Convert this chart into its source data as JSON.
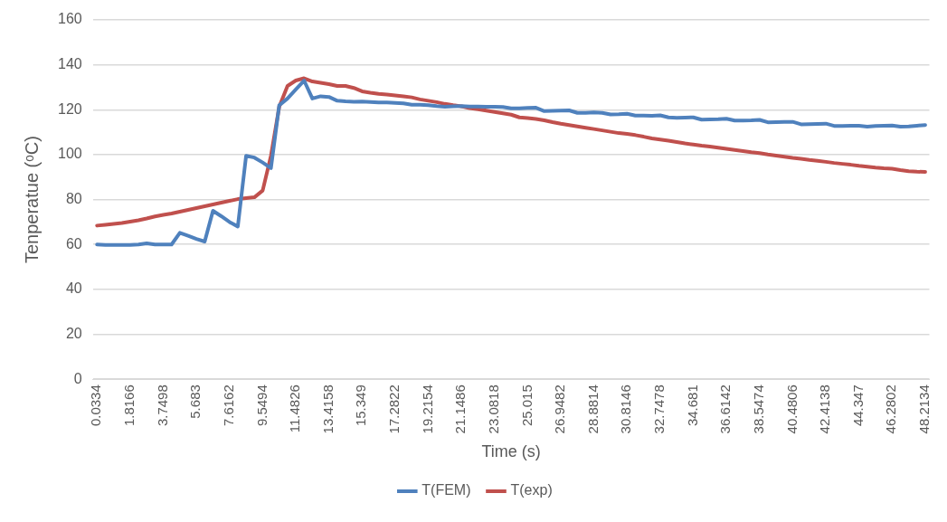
{
  "chart_data": {
    "type": "line",
    "xlabel": "Time (s)",
    "ylabel": "Tenperatue (ᵒC)",
    "categories": [
      "0.0334",
      null,
      null,
      null,
      "1.8166",
      null,
      null,
      null,
      "3.7498",
      null,
      null,
      null,
      "5.683",
      null,
      null,
      null,
      "7.6162",
      null,
      null,
      null,
      "9.5494",
      null,
      null,
      null,
      "11.4826",
      null,
      null,
      null,
      "13.4158",
      null,
      null,
      null,
      "15.349",
      null,
      null,
      null,
      "17.2822",
      null,
      null,
      null,
      "19.2154",
      null,
      null,
      null,
      "21.1486",
      null,
      null,
      null,
      "23.0818",
      null,
      null,
      null,
      "25.015",
      null,
      null,
      null,
      "26.9482",
      null,
      null,
      null,
      "28.8814",
      null,
      null,
      null,
      "30.8146",
      null,
      null,
      null,
      "32.7478",
      null,
      null,
      null,
      "34.681",
      null,
      null,
      null,
      "36.6142",
      null,
      null,
      null,
      "38.5474",
      null,
      null,
      null,
      "40.4806",
      null,
      null,
      null,
      "42.4138",
      null,
      null,
      null,
      "44.347",
      null,
      null,
      null,
      "46.2802",
      null,
      null,
      null,
      "48.2134"
    ],
    "series": [
      {
        "name": "T(FEM)",
        "color": "#4f81bd",
        "values": [
          60,
          59.8,
          59.8,
          59.8,
          59.8,
          60,
          60.5,
          60,
          60,
          60,
          65.2,
          63.9,
          62.5,
          61.3,
          75,
          72.6,
          70,
          68,
          99.5,
          98.7,
          96.5,
          94,
          122,
          125,
          129,
          133,
          125,
          126,
          125.7,
          124,
          123.7,
          123.5,
          123.6,
          123.4,
          123.2,
          123.2,
          123,
          122.8,
          122.2,
          122.2,
          122,
          121.6,
          121.3,
          121.5,
          121.6,
          121.4,
          121.4,
          121.3,
          121.3,
          121.2,
          120.6,
          120.6,
          120.8,
          120.9,
          119.4,
          119.5,
          119.6,
          119.7,
          118.6,
          118.6,
          118.8,
          118.6,
          117.9,
          118,
          118.2,
          117.4,
          117.4,
          117.3,
          117.5,
          116.6,
          116.4,
          116.5,
          116.6,
          115.6,
          115.7,
          115.8,
          116,
          115.2,
          115.2,
          115.3,
          115.5,
          114.4,
          114.5,
          114.6,
          114.6,
          113.5,
          113.6,
          113.7,
          113.8,
          112.8,
          112.8,
          112.9,
          112.9,
          112.5,
          112.8,
          112.9,
          113,
          112.5,
          112.6,
          112.9,
          113.2
        ]
      },
      {
        "name": "T(exp)",
        "color": "#c0504d",
        "values": [
          68.4,
          68.8,
          69.2,
          69.6,
          70.2,
          70.8,
          71.6,
          72.5,
          73.2,
          73.8,
          74.6,
          75.4,
          76.2,
          77,
          77.8,
          78.6,
          79.4,
          80.2,
          80.6,
          81,
          84,
          99.5,
          121.3,
          130.6,
          133,
          134,
          132.6,
          132,
          131.4,
          130.6,
          130.6,
          129.7,
          128.2,
          127.6,
          127.1,
          126.8,
          126.4,
          126,
          125.5,
          124.6,
          124,
          123.4,
          122.6,
          122,
          121.5,
          120.7,
          120.2,
          119.6,
          119,
          118.4,
          117.8,
          116.6,
          116.3,
          115.9,
          115.3,
          114.5,
          113.8,
          113.2,
          112.6,
          112,
          111.4,
          110.8,
          110.2,
          109.6,
          109.2,
          108.7,
          108,
          107.2,
          106.7,
          106.2,
          105.6,
          105,
          104.5,
          104,
          103.6,
          103.1,
          102.6,
          102.1,
          101.6,
          101.1,
          100.7,
          100.1,
          99.6,
          99.1,
          98.6,
          98.2,
          97.7,
          97.3,
          96.8,
          96.3,
          95.9,
          95.5,
          95,
          94.6,
          94.2,
          93.9,
          93.7,
          93.1,
          92.6,
          92.4,
          92.3
        ]
      }
    ],
    "ylim": [
      0,
      160
    ],
    "yticks": [
      0,
      20,
      40,
      60,
      80,
      100,
      120,
      140,
      160
    ],
    "grid": "y",
    "legend": "bottom",
    "marker": "none"
  }
}
